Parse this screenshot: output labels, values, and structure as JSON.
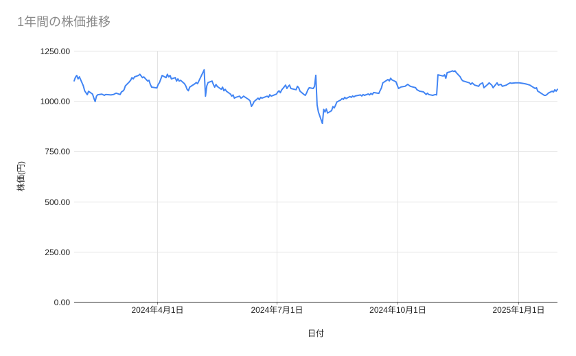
{
  "chart_data": {
    "type": "line",
    "title": "1年間の株価推移",
    "xlabel": "日付",
    "ylabel": "株価(円)",
    "ylim": [
      0,
      1250
    ],
    "y_tick_labels": [
      "0.00",
      "250.00",
      "500.00",
      "750.00",
      "1000.00",
      "1250.00"
    ],
    "x_ticks": [
      {
        "label": "2024年4月1日",
        "date": "2024-04-01"
      },
      {
        "label": "2024年7月1日",
        "date": "2024-07-01"
      },
      {
        "label": "2024年10月1日",
        "date": "2024-10-01"
      },
      {
        "label": "2025年1月1日",
        "date": "2025-01-01"
      }
    ],
    "x_domain": [
      "2024-01-29",
      "2025-01-31"
    ],
    "grid": true,
    "legend": "none",
    "line_color": "#4285f4",
    "grid_color": "#e2e2e2",
    "axis_line_color": "#333333",
    "title_color": "#8a8a8a",
    "points": [
      [
        "2024-01-29",
        1100
      ],
      [
        "2024-01-30",
        1118
      ],
      [
        "2024-01-31",
        1127
      ],
      [
        "2024-02-01",
        1110
      ],
      [
        "2024-02-02",
        1120
      ],
      [
        "2024-02-05",
        1075
      ],
      [
        "2024-02-06",
        1051
      ],
      [
        "2024-02-07",
        1041
      ],
      [
        "2024-02-08",
        1031
      ],
      [
        "2024-02-09",
        1048
      ],
      [
        "2024-02-12",
        1034
      ],
      [
        "2024-02-13",
        1014
      ],
      [
        "2024-02-14",
        997
      ],
      [
        "2024-02-15",
        1024
      ],
      [
        "2024-02-16",
        1031
      ],
      [
        "2024-02-19",
        1034
      ],
      [
        "2024-02-21",
        1028
      ],
      [
        "2024-02-22",
        1032
      ],
      [
        "2024-02-26",
        1030
      ],
      [
        "2024-02-28",
        1032
      ],
      [
        "2024-03-01",
        1039
      ],
      [
        "2024-03-04",
        1032
      ],
      [
        "2024-03-05",
        1045
      ],
      [
        "2024-03-06",
        1049
      ],
      [
        "2024-03-07",
        1056
      ],
      [
        "2024-03-08",
        1075
      ],
      [
        "2024-03-11",
        1095
      ],
      [
        "2024-03-12",
        1103
      ],
      [
        "2024-03-13",
        1116
      ],
      [
        "2024-03-14",
        1110
      ],
      [
        "2024-03-15",
        1120
      ],
      [
        "2024-03-18",
        1127
      ],
      [
        "2024-03-19",
        1133
      ],
      [
        "2024-03-21",
        1116
      ],
      [
        "2024-03-22",
        1120
      ],
      [
        "2024-03-25",
        1099
      ],
      [
        "2024-03-26",
        1103
      ],
      [
        "2024-03-27",
        1082
      ],
      [
        "2024-03-28",
        1069
      ],
      [
        "2024-04-01",
        1065
      ],
      [
        "2024-04-02",
        1082
      ],
      [
        "2024-04-03",
        1092
      ],
      [
        "2024-04-04",
        1110
      ],
      [
        "2024-04-05",
        1127
      ],
      [
        "2024-04-08",
        1116
      ],
      [
        "2024-04-09",
        1133
      ],
      [
        "2024-04-10",
        1120
      ],
      [
        "2024-04-11",
        1127
      ],
      [
        "2024-04-12",
        1110
      ],
      [
        "2024-04-15",
        1116
      ],
      [
        "2024-04-16",
        1099
      ],
      [
        "2024-04-17",
        1110
      ],
      [
        "2024-04-18",
        1099
      ],
      [
        "2024-04-19",
        1103
      ],
      [
        "2024-04-22",
        1086
      ],
      [
        "2024-04-23",
        1075
      ],
      [
        "2024-04-24",
        1058
      ],
      [
        "2024-04-25",
        1051
      ],
      [
        "2024-04-26",
        1069
      ],
      [
        "2024-04-30",
        1086
      ],
      [
        "2024-05-01",
        1092
      ],
      [
        "2024-05-02",
        1086
      ],
      [
        "2024-05-07",
        1155
      ],
      [
        "2024-05-08",
        1024
      ],
      [
        "2024-05-09",
        1075
      ],
      [
        "2024-05-10",
        1092
      ],
      [
        "2024-05-13",
        1099
      ],
      [
        "2024-05-14",
        1082
      ],
      [
        "2024-05-15",
        1069
      ],
      [
        "2024-05-16",
        1082
      ],
      [
        "2024-05-17",
        1072
      ],
      [
        "2024-05-20",
        1058
      ],
      [
        "2024-05-21",
        1069
      ],
      [
        "2024-05-22",
        1051
      ],
      [
        "2024-05-23",
        1058
      ],
      [
        "2024-05-24",
        1048
      ],
      [
        "2024-05-27",
        1034
      ],
      [
        "2024-05-28",
        1024
      ],
      [
        "2024-05-29",
        1030
      ],
      [
        "2024-05-30",
        1014
      ],
      [
        "2024-05-31",
        1018
      ],
      [
        "2024-06-03",
        1024
      ],
      [
        "2024-06-04",
        1014
      ],
      [
        "2024-06-05",
        1018
      ],
      [
        "2024-06-06",
        1024
      ],
      [
        "2024-06-10",
        1007
      ],
      [
        "2024-06-11",
        1000
      ],
      [
        "2024-06-12",
        973
      ],
      [
        "2024-06-13",
        983
      ],
      [
        "2024-06-14",
        997
      ],
      [
        "2024-06-17",
        1014
      ],
      [
        "2024-06-18",
        1007
      ],
      [
        "2024-06-19",
        1018
      ],
      [
        "2024-06-20",
        1014
      ],
      [
        "2024-06-24",
        1024
      ],
      [
        "2024-06-25",
        1018
      ],
      [
        "2024-06-26",
        1031
      ],
      [
        "2024-06-27",
        1024
      ],
      [
        "2024-07-01",
        1034
      ],
      [
        "2024-07-02",
        1044
      ],
      [
        "2024-07-03",
        1051
      ],
      [
        "2024-07-04",
        1041
      ],
      [
        "2024-07-05",
        1055
      ],
      [
        "2024-07-08",
        1079
      ],
      [
        "2024-07-09",
        1062
      ],
      [
        "2024-07-10",
        1072
      ],
      [
        "2024-07-11",
        1079
      ],
      [
        "2024-07-12",
        1062
      ],
      [
        "2024-07-16",
        1056
      ],
      [
        "2024-07-17",
        1073
      ],
      [
        "2024-07-18",
        1066
      ],
      [
        "2024-07-19",
        1049
      ],
      [
        "2024-07-22",
        1032
      ],
      [
        "2024-07-23",
        1028
      ],
      [
        "2024-07-24",
        1040
      ],
      [
        "2024-07-25",
        1056
      ],
      [
        "2024-07-26",
        1066
      ],
      [
        "2024-07-29",
        1062
      ],
      [
        "2024-07-30",
        1072
      ],
      [
        "2024-07-31",
        1128
      ],
      [
        "2024-08-01",
        980
      ],
      [
        "2024-08-02",
        945
      ],
      [
        "2024-08-05",
        888
      ],
      [
        "2024-08-06",
        958
      ],
      [
        "2024-08-07",
        945
      ],
      [
        "2024-08-08",
        960
      ],
      [
        "2024-08-09",
        940
      ],
      [
        "2024-08-12",
        952
      ],
      [
        "2024-08-13",
        972
      ],
      [
        "2024-08-14",
        965
      ],
      [
        "2024-08-15",
        978
      ],
      [
        "2024-08-16",
        995
      ],
      [
        "2024-08-19",
        1005
      ],
      [
        "2024-08-20",
        1012
      ],
      [
        "2024-08-21",
        1008
      ],
      [
        "2024-08-22",
        1018
      ],
      [
        "2024-08-23",
        1012
      ],
      [
        "2024-08-26",
        1022
      ],
      [
        "2024-08-27",
        1018
      ],
      [
        "2024-08-28",
        1025
      ],
      [
        "2024-08-29",
        1020
      ],
      [
        "2024-08-30",
        1025
      ],
      [
        "2024-09-03",
        1030
      ],
      [
        "2024-09-04",
        1025
      ],
      [
        "2024-09-05",
        1032
      ],
      [
        "2024-09-06",
        1028
      ],
      [
        "2024-09-09",
        1035
      ],
      [
        "2024-09-10",
        1030
      ],
      [
        "2024-09-11",
        1038
      ],
      [
        "2024-09-12",
        1032
      ],
      [
        "2024-09-13",
        1042
      ],
      [
        "2024-09-17",
        1038
      ],
      [
        "2024-09-18",
        1052
      ],
      [
        "2024-09-19",
        1066
      ],
      [
        "2024-09-20",
        1090
      ],
      [
        "2024-09-24",
        1107
      ],
      [
        "2024-09-25",
        1100
      ],
      [
        "2024-09-26",
        1113
      ],
      [
        "2024-09-27",
        1105
      ],
      [
        "2024-09-30",
        1096
      ],
      [
        "2024-10-01",
        1079
      ],
      [
        "2024-10-02",
        1062
      ],
      [
        "2024-10-04",
        1070
      ],
      [
        "2024-10-07",
        1073
      ],
      [
        "2024-10-09",
        1083
      ],
      [
        "2024-10-10",
        1078
      ],
      [
        "2024-10-11",
        1073
      ],
      [
        "2024-10-15",
        1066
      ],
      [
        "2024-10-16",
        1056
      ],
      [
        "2024-10-18",
        1049
      ],
      [
        "2024-10-21",
        1045
      ],
      [
        "2024-10-23",
        1032
      ],
      [
        "2024-10-24",
        1039
      ],
      [
        "2024-10-25",
        1032
      ],
      [
        "2024-10-28",
        1028
      ],
      [
        "2024-10-30",
        1032
      ],
      [
        "2024-10-31",
        1030
      ],
      [
        "2024-11-01",
        1130
      ],
      [
        "2024-11-05",
        1124
      ],
      [
        "2024-11-06",
        1130
      ],
      [
        "2024-11-07",
        1113
      ],
      [
        "2024-11-08",
        1141
      ],
      [
        "2024-11-11",
        1147
      ],
      [
        "2024-11-12",
        1150
      ],
      [
        "2024-11-13",
        1147
      ],
      [
        "2024-11-14",
        1150
      ],
      [
        "2024-11-15",
        1141
      ],
      [
        "2024-11-18",
        1120
      ],
      [
        "2024-11-19",
        1107
      ],
      [
        "2024-11-20",
        1100
      ],
      [
        "2024-11-22",
        1096
      ],
      [
        "2024-11-25",
        1090
      ],
      [
        "2024-11-26",
        1083
      ],
      [
        "2024-11-27",
        1090
      ],
      [
        "2024-11-29",
        1079
      ],
      [
        "2024-12-02",
        1073
      ],
      [
        "2024-12-03",
        1083
      ],
      [
        "2024-12-05",
        1090
      ],
      [
        "2024-12-06",
        1066
      ],
      [
        "2024-12-09",
        1083
      ],
      [
        "2024-12-10",
        1090
      ],
      [
        "2024-12-12",
        1079
      ],
      [
        "2024-12-13",
        1066
      ],
      [
        "2024-12-16",
        1090
      ],
      [
        "2024-12-17",
        1079
      ],
      [
        "2024-12-19",
        1083
      ],
      [
        "2024-12-20",
        1073
      ],
      [
        "2024-12-23",
        1079
      ],
      [
        "2024-12-24",
        1083
      ],
      [
        "2024-12-26",
        1090
      ],
      [
        "2024-12-27",
        1088
      ],
      [
        "2024-12-30",
        1090
      ],
      [
        "2025-01-02",
        1090
      ],
      [
        "2025-01-06",
        1086
      ],
      [
        "2025-01-08",
        1083
      ],
      [
        "2025-01-10",
        1079
      ],
      [
        "2025-01-14",
        1062
      ],
      [
        "2025-01-15",
        1066
      ],
      [
        "2025-01-16",
        1049
      ],
      [
        "2025-01-17",
        1045
      ],
      [
        "2025-01-20",
        1032
      ],
      [
        "2025-01-21",
        1028
      ],
      [
        "2025-01-22",
        1028
      ],
      [
        "2025-01-23",
        1032
      ],
      [
        "2025-01-24",
        1039
      ],
      [
        "2025-01-27",
        1049
      ],
      [
        "2025-01-28",
        1045
      ],
      [
        "2025-01-29",
        1056
      ],
      [
        "2025-01-30",
        1049
      ],
      [
        "2025-01-31",
        1058
      ]
    ]
  }
}
